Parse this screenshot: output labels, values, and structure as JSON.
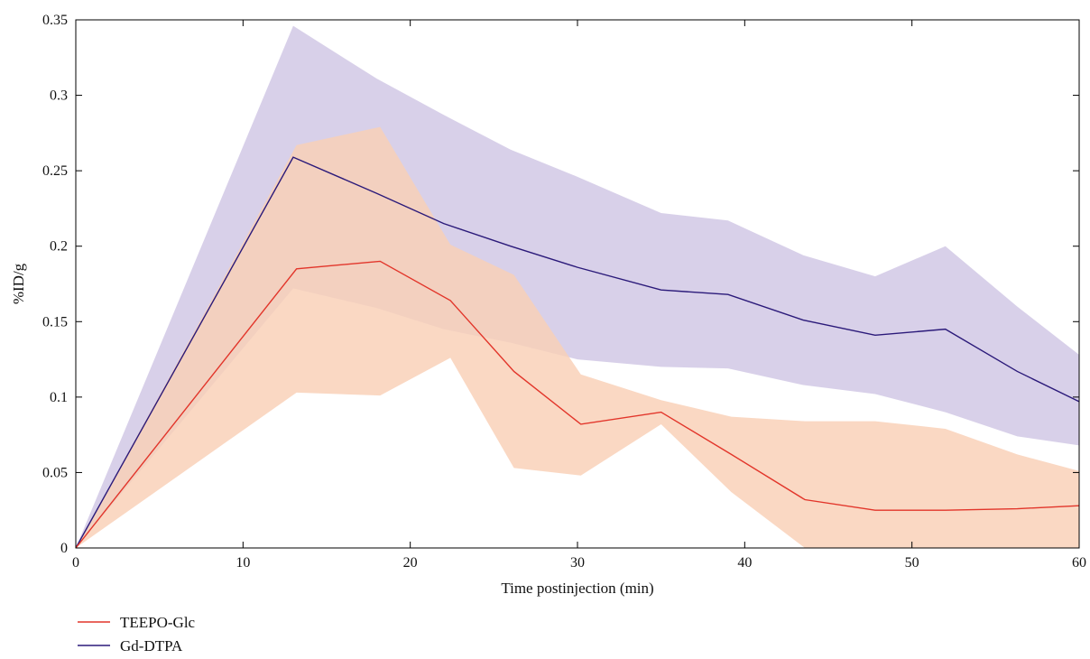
{
  "chart_data": {
    "type": "line",
    "xlabel": "Time postinjection (min)",
    "ylabel": "%ID/g",
    "xlim": [
      0,
      60
    ],
    "ylim": [
      0,
      0.35
    ],
    "xticks": [
      0,
      10,
      20,
      30,
      40,
      50,
      60
    ],
    "yticks": [
      0,
      0.05,
      0.1,
      0.15,
      0.2,
      0.25,
      0.3,
      0.35
    ],
    "xtick_labels": [
      "0",
      "10",
      "20",
      "30",
      "40",
      "50",
      "60"
    ],
    "ytick_labels": [
      "0",
      "0.05",
      "0.1",
      "0.15",
      "0.2",
      "0.25",
      "0.3",
      "0.35"
    ],
    "grid": false,
    "legend_position": "bottom-left",
    "series": [
      {
        "name": "Gd-DTPA",
        "color": "#2b1a7a",
        "band_color": "#cfc6e4",
        "x": [
          0,
          13,
          18,
          22,
          26,
          30,
          35,
          39,
          43.5,
          47.8,
          52,
          56.3,
          60
        ],
        "y": [
          0,
          0.259,
          0.235,
          0.215,
          0.2,
          0.186,
          0.171,
          0.168,
          0.151,
          0.141,
          0.145,
          0.117,
          0.097
        ],
        "upper": [
          0,
          0.346,
          0.311,
          0.287,
          0.264,
          0.246,
          0.222,
          0.217,
          0.194,
          0.18,
          0.2,
          0.16,
          0.128
        ],
        "lower": [
          0,
          0.172,
          0.159,
          0.145,
          0.136,
          0.125,
          0.12,
          0.119,
          0.108,
          0.102,
          0.09,
          0.074,
          0.068
        ]
      },
      {
        "name": "TEEPO-Glc",
        "color": "#e2352a",
        "band_color": "#f9cfb6",
        "x": [
          0,
          13.2,
          18.2,
          22.4,
          26.2,
          30.2,
          35,
          39.2,
          43.6,
          47.8,
          52,
          56.3,
          60
        ],
        "y": [
          0,
          0.185,
          0.19,
          0.164,
          0.117,
          0.082,
          0.09,
          0.062,
          0.032,
          0.025,
          0.025,
          0.026,
          0.028
        ],
        "upper": [
          0,
          0.267,
          0.279,
          0.201,
          0.181,
          0.115,
          0.098,
          0.087,
          0.084,
          0.084,
          0.079,
          0.062,
          0.051
        ],
        "lower": [
          0,
          0.103,
          0.101,
          0.126,
          0.053,
          0.048,
          0.082,
          0.037,
          0,
          0,
          0,
          0,
          0
        ]
      }
    ]
  }
}
